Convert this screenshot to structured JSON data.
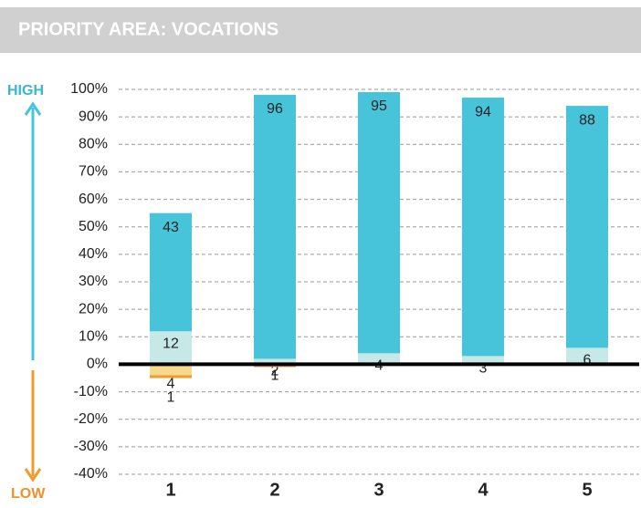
{
  "chart_data": {
    "type": "bar",
    "stacked": true,
    "title": "PRIORITY AREA: VOCATIONS",
    "high_label": "HIGH",
    "low_label": "LOW",
    "categories": [
      "1",
      "2",
      "3",
      "4",
      "5"
    ],
    "series": [
      {
        "name": "light-positive",
        "color": "#c6e9e8",
        "values": [
          12,
          2,
          4,
          3,
          6
        ],
        "value_labels": [
          "12",
          "2",
          "4",
          "3",
          "6"
        ]
      },
      {
        "name": "dark-positive",
        "color": "#47c4da",
        "values": [
          43,
          96,
          95,
          94,
          88
        ],
        "value_labels": [
          "43",
          "96",
          "95",
          "94",
          "88"
        ]
      },
      {
        "name": "light-negative",
        "color": "#f6d98c",
        "values": [
          -4,
          null,
          null,
          null,
          null
        ],
        "value_labels": [
          "4",
          null,
          null,
          null,
          null
        ]
      },
      {
        "name": "dark-negative",
        "color": "#f29a2e",
        "values": [
          -1,
          -1,
          null,
          null,
          null
        ],
        "value_labels": [
          "1",
          "1",
          null,
          null,
          null
        ]
      }
    ],
    "ylim": [
      -40,
      100
    ],
    "yticks": [
      {
        "value": 100,
        "label": "100%"
      },
      {
        "value": 90,
        "label": "90%"
      },
      {
        "value": 80,
        "label": "80%"
      },
      {
        "value": 70,
        "label": "70%"
      },
      {
        "value": 60,
        "label": "60%"
      },
      {
        "value": 50,
        "label": "50%"
      },
      {
        "value": 40,
        "label": "40%"
      },
      {
        "value": 30,
        "label": "30%"
      },
      {
        "value": 20,
        "label": "20%"
      },
      {
        "value": 10,
        "label": "10%"
      },
      {
        "value": 0,
        "label": "0%"
      },
      {
        "value": -10,
        "label": "-10%"
      },
      {
        "value": -20,
        "label": "-20%"
      },
      {
        "value": -30,
        "label": "-30%"
      },
      {
        "value": -40,
        "label": "-40%"
      }
    ],
    "grid": true
  }
}
